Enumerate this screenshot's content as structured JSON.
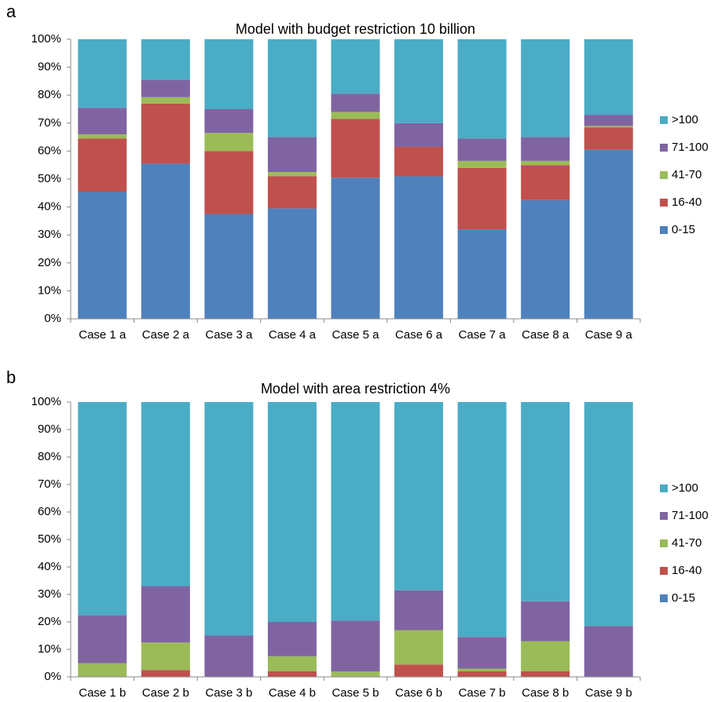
{
  "chart_data": [
    {
      "type": "stacked_bar",
      "panel": "a",
      "title": "Model with budget restriction 10 billion",
      "categories": [
        "Case 1 a",
        "Case 2 a",
        "Case 3 a",
        "Case 4 a",
        "Case 5 a",
        "Case 6 a",
        "Case 7 a",
        "Case 8 a",
        "Case 9 a"
      ],
      "series": [
        {
          "name": "0-15",
          "color": "#4f81bd",
          "values": [
            45.5,
            55.5,
            37.5,
            39.5,
            50.5,
            51,
            32,
            42.5,
            60.5
          ]
        },
        {
          "name": "16-40",
          "color": "#c0504d",
          "values": [
            19,
            21.5,
            22.5,
            11.5,
            21,
            10.5,
            22,
            12.5,
            8
          ]
        },
        {
          "name": "41-70",
          "color": "#9bbb59",
          "values": [
            1.5,
            2.3,
            6.5,
            1.5,
            2.5,
            0,
            2.5,
            1.5,
            0.5
          ]
        },
        {
          "name": "71-100",
          "color": "#8064a2",
          "values": [
            9.5,
            6.2,
            8.5,
            12.5,
            6.5,
            8.5,
            8,
            8.5,
            4
          ]
        },
        {
          "name": ">100",
          "color": "#4bacc6",
          "values": [
            24.5,
            14.5,
            25,
            35,
            19.5,
            30,
            35.5,
            35,
            27
          ]
        }
      ],
      "ylim": [
        0,
        100
      ],
      "yticks": [
        {
          "value": 0,
          "label": "0%"
        },
        {
          "value": 10,
          "label": "10%"
        },
        {
          "value": 20,
          "label": "20%"
        },
        {
          "value": 30,
          "label": "30%"
        },
        {
          "value": 40,
          "label": "40%"
        },
        {
          "value": 50,
          "label": "50%"
        },
        {
          "value": 60,
          "label": "60%"
        },
        {
          "value": 70,
          "label": "70%"
        },
        {
          "value": 80,
          "label": "80%"
        },
        {
          "value": 90,
          "label": "90%"
        },
        {
          "value": 100,
          "label": "100%"
        }
      ],
      "legend": "right"
    },
    {
      "type": "stacked_bar",
      "panel": "b",
      "title": "Model with area restriction 4%",
      "categories": [
        "Case 1 b",
        "Case 2 b",
        "Case 3 b",
        "Case 4 b",
        "Case 5 b",
        "Case 6 b",
        "Case 7 b",
        "Case 8 b",
        "Case 9 b"
      ],
      "series": [
        {
          "name": "0-15",
          "color": "#4f81bd",
          "values": [
            0,
            0,
            0,
            0,
            0,
            0,
            0,
            0,
            0
          ]
        },
        {
          "name": "16-40",
          "color": "#c0504d",
          "values": [
            0,
            2.5,
            0,
            2,
            0,
            4.5,
            2,
            2,
            0
          ]
        },
        {
          "name": "41-70",
          "color": "#9bbb59",
          "values": [
            5,
            10,
            0,
            5.5,
            2,
            12.5,
            1,
            11,
            0
          ]
        },
        {
          "name": "71-100",
          "color": "#8064a2",
          "values": [
            17.5,
            20.5,
            15,
            12.5,
            18.5,
            14.5,
            11.5,
            14.5,
            18.5
          ]
        },
        {
          "name": ">100",
          "color": "#4bacc6",
          "values": [
            77.5,
            67,
            85,
            80,
            79.5,
            68.5,
            85.5,
            72.5,
            81.5
          ]
        }
      ],
      "ylim": [
        0,
        100
      ],
      "yticks": [
        {
          "value": 0,
          "label": "0%"
        },
        {
          "value": 10,
          "label": "10%"
        },
        {
          "value": 20,
          "label": "20%"
        },
        {
          "value": 30,
          "label": "30%"
        },
        {
          "value": 40,
          "label": "40%"
        },
        {
          "value": 50,
          "label": "50%"
        },
        {
          "value": 60,
          "label": "60%"
        },
        {
          "value": 70,
          "label": "70%"
        },
        {
          "value": 80,
          "label": "80%"
        },
        {
          "value": 90,
          "label": "90%"
        },
        {
          "value": 100,
          "label": "100%"
        }
      ],
      "legend": "right"
    }
  ]
}
